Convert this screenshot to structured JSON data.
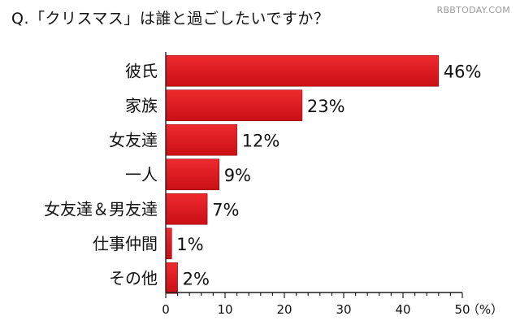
{
  "title": "Q.「クリスマス」は誰と過ごしたいですか？",
  "watermark": "RBBTODAY.COM",
  "chart_data": {
    "type": "bar",
    "orientation": "horizontal",
    "categories": [
      "彼氏",
      "家族",
      "女友達",
      "一人",
      "女友達＆男友達",
      "仕事仲間",
      "その他"
    ],
    "values": [
      46,
      23,
      12,
      9,
      7,
      1,
      2
    ],
    "value_labels": [
      "46%",
      "23%",
      "12%",
      "9%",
      "7%",
      "1%",
      "2%"
    ],
    "xlim": [
      0,
      50
    ],
    "xticks": [
      0,
      10,
      20,
      30,
      40,
      50
    ],
    "xunit": "（%）",
    "bar_color": "#e0151b",
    "grid": false
  }
}
